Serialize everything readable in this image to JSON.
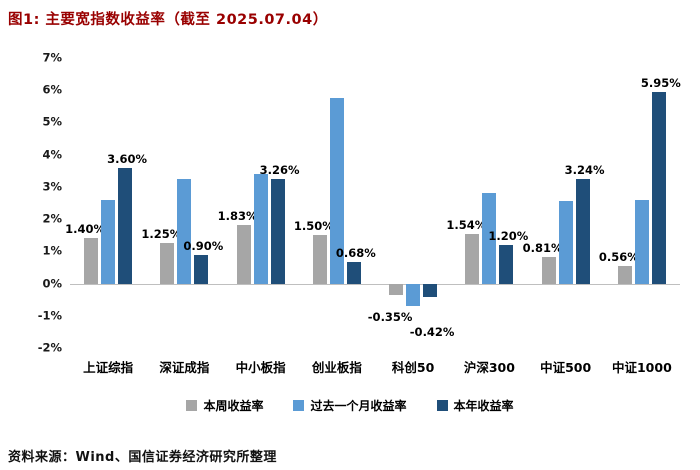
{
  "title": "图1: 主要宽指数收益率（截至 2025.07.04）",
  "source": "资料来源：Wind、国信证券经济研究所整理",
  "colors": {
    "title": "#990000",
    "zero_line": "#bfbfbf",
    "axis_text": "#1a1a1a"
  },
  "chart_data": {
    "type": "bar",
    "title": "主要宽指数收益率（截至 2025.07.04）",
    "categories": [
      "上证综指",
      "深证成指",
      "中小板指",
      "创业板指",
      "科创50",
      "沪深300",
      "中证500",
      "中证1000"
    ],
    "series": [
      {
        "key": "week",
        "name": "本周收益率",
        "color": "#A6A6A6",
        "values": [
          1.4,
          1.25,
          1.83,
          1.5,
          -0.35,
          1.54,
          0.81,
          0.56
        ],
        "labels": [
          "1.40%",
          "1.25%",
          "1.83%",
          "1.50%",
          "-0.35%",
          "1.54%",
          "0.81%",
          "0.56%"
        ]
      },
      {
        "key": "month",
        "name": "过去一个月收益率",
        "color": "#5B9BD5",
        "values": [
          2.6,
          3.25,
          3.4,
          5.75,
          -0.7,
          2.8,
          2.55,
          2.6
        ],
        "labels": null
      },
      {
        "key": "year",
        "name": "本年收益率",
        "color": "#1F4E79",
        "values": [
          3.6,
          0.9,
          3.26,
          0.68,
          -0.42,
          1.2,
          3.24,
          5.95
        ],
        "labels": [
          "3.60%",
          "0.90%",
          "3.26%",
          "0.68%",
          "-0.42%",
          "1.20%",
          "3.24%",
          "5.95%"
        ]
      }
    ],
    "xlabel": "",
    "ylabel": "",
    "ylim": [
      -2,
      7
    ],
    "ytick_step": 1,
    "ytick_labels": [
      "7%",
      "6%",
      "5%",
      "4%",
      "3%",
      "2%",
      "1%",
      "0%",
      "-1%",
      "-2%"
    ],
    "grid": false,
    "legend_position": "bottom"
  }
}
